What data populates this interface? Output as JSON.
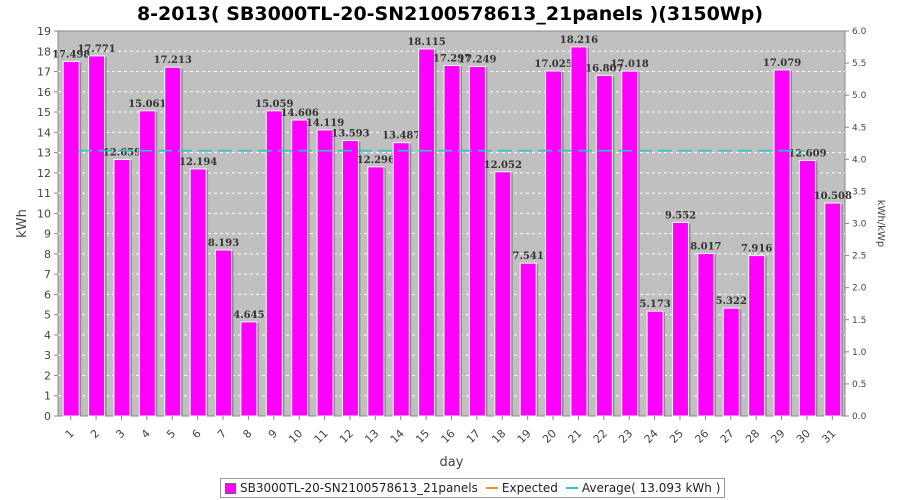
{
  "colors": {
    "bar": "#ff00ff",
    "expected": "#ff8c1a",
    "average": "#2ec4c4",
    "plot_bg": "#c0c0c0",
    "grid": "#ffffff"
  },
  "chart_data": {
    "type": "bar",
    "title": "8-2013( SB3000TL-20-SN2100578613_21panels )(3150Wp)",
    "xlabel": "day",
    "ylabel": "kWh",
    "ylabel_right": "kWh/kWp",
    "ylim": [
      0,
      19
    ],
    "ylim_right": [
      0.0,
      6.0
    ],
    "yticks": [
      "0",
      "1",
      "2",
      "3",
      "4",
      "5",
      "6",
      "7",
      "8",
      "9",
      "10",
      "11",
      "12",
      "13",
      "14",
      "15",
      "16",
      "17",
      "18",
      "19"
    ],
    "yticks_right": [
      "0.0",
      "0.5",
      "1.0",
      "1.5",
      "2.0",
      "2.5",
      "3.0",
      "3.5",
      "4.0",
      "4.5",
      "5.0",
      "5.5",
      "6.0"
    ],
    "grid": true,
    "legend_position": "bottom",
    "categories": [
      "1",
      "2",
      "3",
      "4",
      "5",
      "6",
      "7",
      "8",
      "9",
      "10",
      "11",
      "12",
      "13",
      "14",
      "15",
      "16",
      "17",
      "18",
      "19",
      "20",
      "21",
      "22",
      "23",
      "24",
      "25",
      "26",
      "27",
      "28",
      "29",
      "30",
      "31"
    ],
    "series": [
      {
        "name": "SB3000TL-20-SN2100578613_21panels",
        "values": [
          17.498,
          17.771,
          12.659,
          15.061,
          17.213,
          12.194,
          8.193,
          4.645,
          15.059,
          14.606,
          14.119,
          13.593,
          12.296,
          13.487,
          18.115,
          17.297,
          17.249,
          12.052,
          7.541,
          17.025,
          18.216,
          16.807,
          17.018,
          5.173,
          9.552,
          8.017,
          5.322,
          7.916,
          17.079,
          12.609,
          10.508
        ],
        "labels": [
          "17.498",
          "17.771",
          "12.659",
          "15.061",
          "17.213",
          "12.194",
          "8.193",
          "4.645",
          "15.059",
          "14.606",
          "14.119",
          "13.593",
          "12.296",
          "13.487",
          "18.115",
          "17.297",
          "17.249",
          "12.052",
          "7.541",
          "17.025",
          "18.216",
          "16.807",
          "17.018",
          "5.173",
          "9.552",
          "8.017",
          "5.322",
          "7.916",
          "17.079",
          "12.609",
          "10.508"
        ]
      }
    ],
    "average": 13.093,
    "legend": {
      "series_label": "SB3000TL-20-SN2100578613_21panels",
      "expected_label": "Expected",
      "average_label": "Average( 13.093 kWh )"
    }
  }
}
